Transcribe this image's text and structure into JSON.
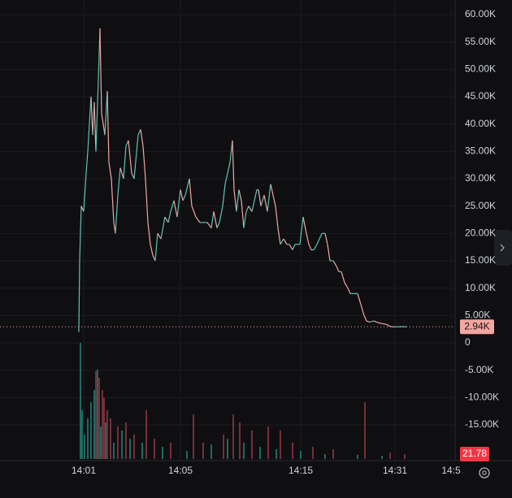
{
  "chart_data": {
    "type": "line",
    "xlim": [
      0,
      560
    ],
    "ylim": [
      -21540,
      62680
    ],
    "grid": true,
    "background": "#0f0f12",
    "up_color": "#5fc4b4",
    "down_color": "#f4a6a0",
    "yticks": [
      {
        "value": 60000,
        "label": "60.00K"
      },
      {
        "value": 55000,
        "label": "55.00K"
      },
      {
        "value": 50000,
        "label": "50.00K"
      },
      {
        "value": 45000,
        "label": "45.00K"
      },
      {
        "value": 40000,
        "label": "40.00K"
      },
      {
        "value": 35000,
        "label": "35.00K"
      },
      {
        "value": 30000,
        "label": "30.00K"
      },
      {
        "value": 25000,
        "label": "25.00K"
      },
      {
        "value": 20000,
        "label": "20.00K"
      },
      {
        "value": 15000,
        "label": "15.00K"
      },
      {
        "value": 10000,
        "label": "10.00K"
      },
      {
        "value": 5000,
        "label": "5.00K"
      },
      0,
      {
        "value": -5000,
        "label": "-5.00K"
      },
      {
        "value": -10000,
        "label": "-10.00K"
      },
      {
        "value": -15000,
        "label": "-15.00K"
      }
    ],
    "xticks": [
      {
        "value": 103,
        "label": "14:01"
      },
      {
        "value": 222,
        "label": "14:05"
      },
      {
        "value": 370,
        "label": "14:15"
      },
      {
        "value": 486,
        "label": "14:31"
      },
      {
        "value": 555,
        "label": "14:5"
      }
    ],
    "x": [
      97,
      98,
      100,
      103,
      106,
      108,
      112,
      114,
      116,
      118,
      121,
      123,
      125,
      127,
      129,
      132,
      134,
      137,
      140,
      142,
      145,
      148,
      152,
      155,
      158,
      162,
      165,
      170,
      173,
      176,
      179,
      182,
      185,
      188,
      191,
      194,
      198,
      203,
      207,
      210,
      214,
      218,
      222,
      225,
      228,
      233,
      236,
      241,
      246,
      250,
      255,
      260,
      263,
      267,
      270,
      274,
      277,
      280,
      283,
      286,
      288,
      291,
      294,
      297,
      300,
      303,
      306,
      310,
      313,
      316,
      318,
      321,
      325,
      329,
      333,
      336,
      339,
      342,
      345,
      349,
      353,
      356,
      360,
      363,
      366,
      369,
      373,
      377,
      380,
      383,
      386,
      390,
      393,
      396,
      400,
      403,
      406,
      410,
      414,
      417,
      420,
      424,
      428,
      431,
      435,
      440,
      444,
      448,
      451,
      455,
      460,
      465,
      470,
      475,
      480,
      485,
      490,
      500
    ],
    "values": [
      2000,
      15000,
      25000,
      24000,
      31000,
      35000,
      45000,
      38000,
      44000,
      35000,
      48000,
      57500,
      42000,
      40000,
      38000,
      46000,
      33000,
      30000,
      22000,
      20000,
      27000,
      32000,
      30000,
      36000,
      37000,
      31000,
      30000,
      38000,
      39000,
      36000,
      30000,
      22000,
      18000,
      16000,
      15000,
      20000,
      19000,
      23000,
      22000,
      24000,
      26000,
      23000,
      28000,
      26000,
      27000,
      30000,
      25000,
      23000,
      22000,
      22000,
      22000,
      21000,
      24000,
      21000,
      22000,
      25000,
      29000,
      31000,
      33000,
      37000,
      28000,
      24000,
      28000,
      26000,
      21000,
      24000,
      25000,
      24000,
      26000,
      28000,
      28000,
      25000,
      27000,
      24000,
      29000,
      27000,
      25000,
      21000,
      18000,
      19000,
      18000,
      18000,
      17000,
      18000,
      18000,
      18000,
      23000,
      20000,
      18000,
      17000,
      17000,
      18000,
      19000,
      20000,
      20000,
      18000,
      15000,
      15000,
      14000,
      13000,
      13000,
      11000,
      10000,
      9000,
      9000,
      9000,
      7000,
      5000,
      4000,
      3800,
      4000,
      3700,
      3500,
      3400,
      3000,
      2900,
      2940,
      2940
    ],
    "last_price": {
      "value": 2940,
      "label": "2.94K",
      "color": "#f4a6a0"
    },
    "volume": {
      "vlim": [
        0,
        560
      ],
      "up": {
        "color": "#1f7a6e",
        "x": [
          99,
          101,
          104,
          108,
          112,
          116,
          120,
          124,
          130,
          140,
          150,
          160,
          175,
          200,
          230,
          260,
          280,
          300,
          320,
          340,
          370,
          400,
          440,
          470
        ],
        "values": [
          534,
          224,
          112,
          187,
          261,
          317,
          411,
          149,
          168,
          75,
          131,
          93,
          75,
          56,
          37,
          67,
          93,
          75,
          56,
          45,
          37,
          22,
          19,
          15
        ]
      },
      "down": {
        "color": "#8a3440",
        "x": [
          118,
          122,
          126,
          128,
          132,
          136,
          145,
          155,
          165,
          180,
          190,
          210,
          238,
          250,
          275,
          287,
          295,
          310,
          330,
          345,
          360,
          385,
          410,
          449,
          480,
          498
        ],
        "values": [
          403,
          373,
          317,
          280,
          224,
          187,
          149,
          168,
          112,
          224,
          93,
          75,
          205,
          75,
          112,
          205,
          168,
          131,
          149,
          131,
          75,
          56,
          45,
          261,
          30,
          21.78
        ]
      },
      "label_color": "#f23645"
    }
  }
}
